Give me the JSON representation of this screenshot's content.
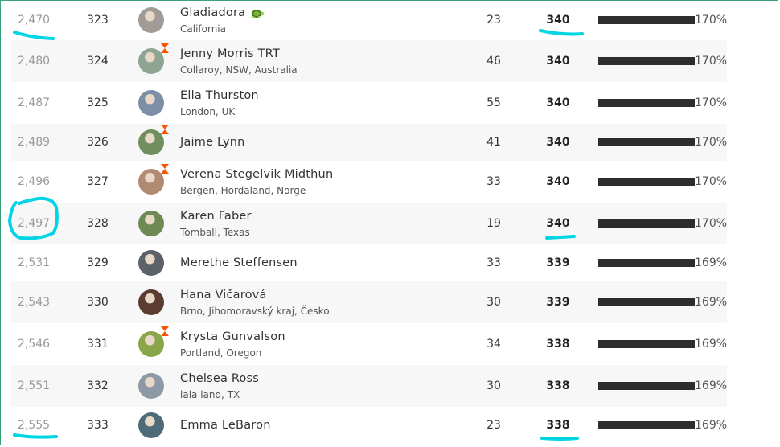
{
  "colors": {
    "highlight": "#00d5e5",
    "bar": "#2d2d2d",
    "badge": "#fc5200",
    "row_alt": "#f7f7f7",
    "frame": "#3aa07e"
  },
  "rows": [
    {
      "rank": "2,470",
      "num": "323",
      "name": "Gladiadora",
      "location": "California",
      "total": "23",
      "score": "340",
      "progress": 1.0,
      "pct": "170%",
      "badge": false,
      "turtle": true,
      "avatar_color": "#a09b96"
    },
    {
      "rank": "2,480",
      "num": "324",
      "name": "Jenny Morris TRT",
      "location": "Collaroy, NSW, Australia",
      "total": "46",
      "score": "340",
      "progress": 1.0,
      "pct": "170%",
      "badge": true,
      "turtle": false,
      "avatar_color": "#8fa594"
    },
    {
      "rank": "2,487",
      "num": "325",
      "name": "Ella Thurston",
      "location": "London, UK",
      "total": "55",
      "score": "340",
      "progress": 1.0,
      "pct": "170%",
      "badge": false,
      "turtle": false,
      "avatar_color": "#7d8fa6"
    },
    {
      "rank": "2,489",
      "num": "326",
      "name": "Jaime Lynn",
      "location": "",
      "total": "41",
      "score": "340",
      "progress": 1.0,
      "pct": "170%",
      "badge": true,
      "turtle": false,
      "avatar_color": "#6f8f5e"
    },
    {
      "rank": "2,496",
      "num": "327",
      "name": "Verena Stegelvik Midthun",
      "location": "Bergen, Hordaland, Norge",
      "total": "33",
      "score": "340",
      "progress": 1.0,
      "pct": "170%",
      "badge": true,
      "turtle": false,
      "avatar_color": "#b08a72"
    },
    {
      "rank": "2,497",
      "num": "328",
      "name": "Karen Faber",
      "location": "Tomball, Texas",
      "total": "19",
      "score": "340",
      "progress": 1.0,
      "pct": "170%",
      "badge": false,
      "turtle": false,
      "avatar_color": "#6d8a55"
    },
    {
      "rank": "2,531",
      "num": "329",
      "name": "Merethe Steffensen",
      "location": "",
      "total": "33",
      "score": "339",
      "progress": 1.0,
      "pct": "169%",
      "badge": false,
      "turtle": false,
      "avatar_color": "#5c6268"
    },
    {
      "rank": "2,543",
      "num": "330",
      "name": "Hana Vičarová",
      "location": "Brno, Jihomoravský kraj, Česko",
      "total": "30",
      "score": "339",
      "progress": 1.0,
      "pct": "169%",
      "badge": false,
      "turtle": false,
      "avatar_color": "#5a3c30"
    },
    {
      "rank": "2,546",
      "num": "331",
      "name": "Krysta Gunvalson",
      "location": "Portland, Oregon",
      "total": "34",
      "score": "338",
      "progress": 1.0,
      "pct": "169%",
      "badge": true,
      "turtle": false,
      "avatar_color": "#8aa64a"
    },
    {
      "rank": "2,551",
      "num": "332",
      "name": "Chelsea Ross",
      "location": "lala land, TX",
      "total": "30",
      "score": "338",
      "progress": 1.0,
      "pct": "169%",
      "badge": false,
      "turtle": false,
      "avatar_color": "#8d9aa6"
    },
    {
      "rank": "2,555",
      "num": "333",
      "name": "Emma LeBaron",
      "location": "",
      "total": "23",
      "score": "338",
      "progress": 1.0,
      "pct": "169%",
      "badge": false,
      "turtle": false,
      "avatar_color": "#4f6b78"
    }
  ]
}
